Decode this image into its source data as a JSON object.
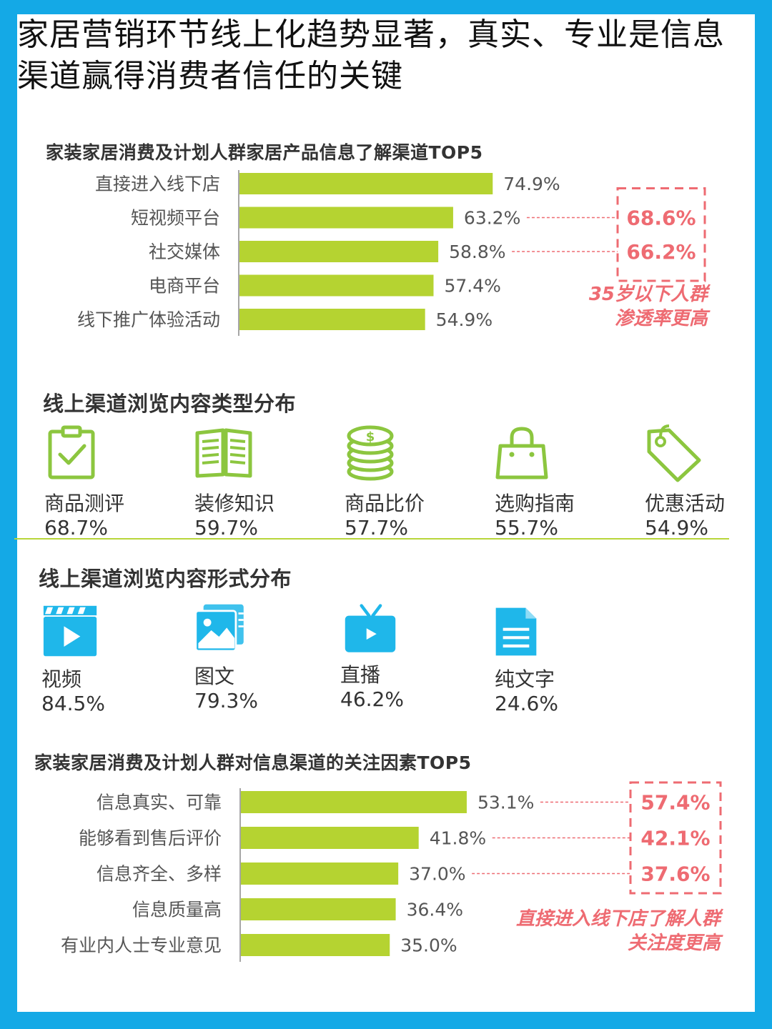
{
  "title": "家居营销环节线上化趋势显著，真实、专业是信息渠道赢得消费者信任的关键",
  "colors": {
    "bar": "#b5d331",
    "accent": "#ee6b72",
    "icon_green": "#8cc63f",
    "icon_blue": "#1fb7ea",
    "frame": "#14a9e6"
  },
  "chart_data": [
    {
      "type": "bar",
      "orientation": "horizontal",
      "title": "家装家居消费及计划人群家居产品信息了解渠道TOP5",
      "categories": [
        "直接进入线下店",
        "短视频平台",
        "社交媒体",
        "电商平台",
        "线下推广体验活动"
      ],
      "values": [
        74.9,
        63.2,
        58.8,
        57.4,
        54.9
      ],
      "labels": [
        "74.9%",
        "63.2%",
        "58.8%",
        "57.4%",
        "54.9%"
      ],
      "callout": {
        "values": [
          "68.6%",
          "66.2%"
        ],
        "rows": [
          1,
          2
        ],
        "note": [
          "35岁以下人群",
          "渗透率更高"
        ]
      }
    },
    {
      "type": "bar",
      "orientation": "horizontal",
      "title": "家装家居消费及计划人群对信息渠道的关注因素TOP5",
      "categories": [
        "信息真实、可靠",
        "能够看到售后评价",
        "信息齐全、多样",
        "信息质量高",
        "有业内人士专业意见"
      ],
      "values": [
        53.1,
        41.8,
        37.0,
        36.4,
        35.0
      ],
      "labels": [
        "53.1%",
        "41.8%",
        "37.0%",
        "36.4%",
        "35.0%"
      ],
      "callout": {
        "values": [
          "57.4%",
          "42.1%",
          "37.6%"
        ],
        "rows": [
          0,
          1,
          2
        ],
        "note": [
          "直接进入线下店了解人群",
          "关注度更高"
        ]
      }
    }
  ],
  "content_types": {
    "title": "线上渠道浏览内容类型分布",
    "items": [
      {
        "icon": "clipboard-check-icon",
        "label": "商品测评",
        "value": "68.7%"
      },
      {
        "icon": "open-book-icon",
        "label": "装修知识",
        "value": "59.7%"
      },
      {
        "icon": "coin-stack-icon",
        "label": "商品比价",
        "value": "57.7%"
      },
      {
        "icon": "shopping-bag-icon",
        "label": "选购指南",
        "value": "55.7%"
      },
      {
        "icon": "price-tag-icon",
        "label": "优惠活动",
        "value": "54.9%"
      }
    ]
  },
  "content_forms": {
    "title": "线上渠道浏览内容形式分布",
    "items": [
      {
        "icon": "video-clapper-icon",
        "label": "视频",
        "value": "84.5%"
      },
      {
        "icon": "picture-icon",
        "label": "图文",
        "value": "79.3%"
      },
      {
        "icon": "tv-play-icon",
        "label": "直播",
        "value": "46.2%"
      },
      {
        "icon": "document-icon",
        "label": "纯文字",
        "value": "24.6%"
      }
    ]
  }
}
